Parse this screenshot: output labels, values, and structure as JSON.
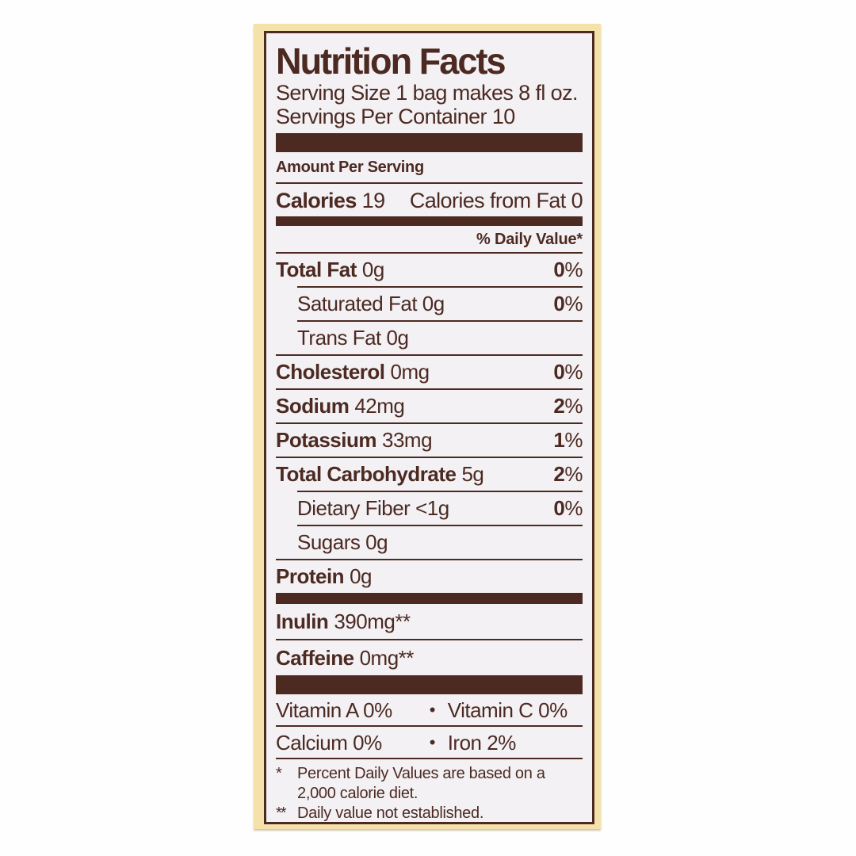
{
  "colors": {
    "brown": "#4c2a22",
    "cream": "#f5e2aa",
    "panel": "#f3f1f4",
    "page": "#fefefe"
  },
  "label": {
    "title": "Nutrition Facts",
    "serving_size": "Serving Size 1 bag makes 8 fl oz.",
    "servings_per_container": "Servings Per Container 10",
    "amount_per_serving": "Amount Per Serving",
    "calories_label": "Calories",
    "calories_value": "19",
    "calories_from_fat": "Calories from Fat 0",
    "daily_value_header": "% Daily Value*",
    "percent_sign": "%",
    "bullet": "•",
    "rows": [
      {
        "name": "Total Fat",
        "amount": "0g",
        "dv": "0"
      },
      {
        "name": "Saturated Fat",
        "amount": "0g",
        "dv": "0"
      },
      {
        "name": "Trans Fat",
        "amount": "0g"
      },
      {
        "name": "Cholesterol",
        "amount": "0mg",
        "dv": "0"
      },
      {
        "name": "Sodium",
        "amount": "42mg",
        "dv": "2"
      },
      {
        "name": "Potassium",
        "amount": "33mg",
        "dv": "1"
      },
      {
        "name": "Total Carbohydrate",
        "amount": "5g",
        "dv": "2"
      },
      {
        "name": "Dietary Fiber",
        "amount": "<1g",
        "dv": "0"
      },
      {
        "name": "Sugars",
        "amount": "0g"
      },
      {
        "name": "Protein",
        "amount": "0g"
      }
    ],
    "extra_rows": [
      {
        "name": "Inulin",
        "amount": "390mg**"
      },
      {
        "name": "Caffeine",
        "amount": "0mg**"
      }
    ],
    "micronutrients": [
      {
        "left": "Vitamin A 0%",
        "right": "Vitamin C 0%"
      },
      {
        "left": "Calcium 0%",
        "right": "Iron 2%"
      }
    ],
    "footnotes": [
      {
        "marker": "*",
        "text": "Percent Daily Values are based on a 2,000 calorie diet."
      },
      {
        "marker": "**",
        "text": "Daily value not established."
      }
    ]
  }
}
